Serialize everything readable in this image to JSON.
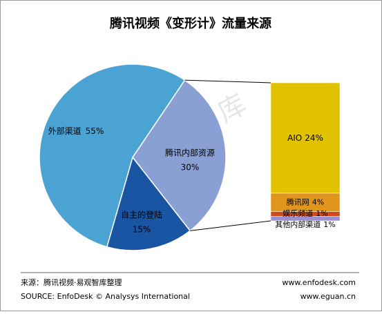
{
  "chart_data": {
    "type": "pie_of_bar",
    "title": "腾讯视频《变形计》流量来源",
    "pie": {
      "categories": [
        "腾讯内部资源",
        "自主的登陆",
        "外部渠道"
      ],
      "values": [
        30,
        15,
        55
      ],
      "value_labels": [
        "30%",
        "15%",
        "55%"
      ],
      "colors": [
        "#8a9fd4",
        "#1a55a3",
        "#4aa3d3"
      ]
    },
    "bar": {
      "categories": [
        "AIO",
        "腾讯网",
        "娱乐频道",
        "其他内部渠道"
      ],
      "values": [
        24,
        4,
        1,
        1
      ],
      "value_labels": [
        "24%",
        "4%",
        "1%",
        "1%"
      ],
      "colors": [
        "#e0c200",
        "#e0951c",
        "#cc4a1c",
        "#9c8fcf"
      ]
    }
  },
  "watermark": "易观智库",
  "footer": {
    "source_cn": "来源：腾讯视频·易观智库整理",
    "source_en": "SOURCE: EnfoDesk © Analysys International",
    "site1": "www.enfodesk.com",
    "site2": "www.eguan.cn"
  }
}
